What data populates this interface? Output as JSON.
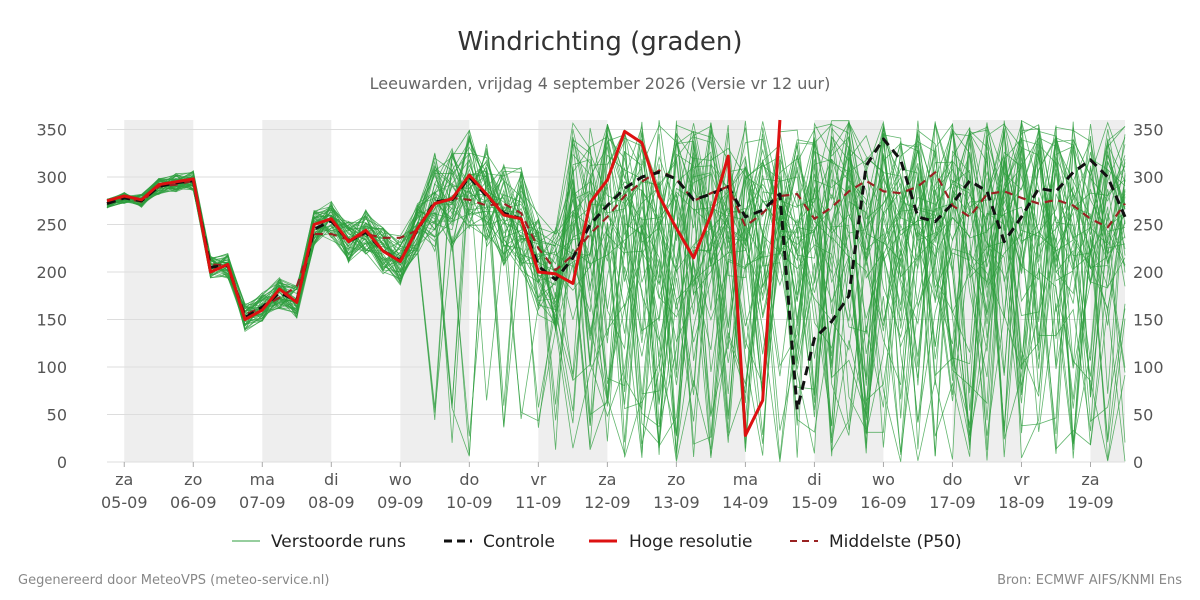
{
  "chart_data": {
    "type": "line",
    "title": "Windrichting (graden)",
    "subtitle": "Leeuwarden, vrijdag  4 september 2026 (Versie vr 12 uur)",
    "ylim": [
      0,
      360
    ],
    "yticks": [
      0,
      50,
      100,
      150,
      200,
      250,
      300,
      350
    ],
    "xlim": [
      -0.25,
      14.5
    ],
    "x_ticks": [
      {
        "day": "za",
        "date": "05-09"
      },
      {
        "day": "zo",
        "date": "06-09"
      },
      {
        "day": "ma",
        "date": "07-09"
      },
      {
        "day": "di",
        "date": "08-09"
      },
      {
        "day": "wo",
        "date": "09-09"
      },
      {
        "day": "do",
        "date": "10-09"
      },
      {
        "day": "vr",
        "date": "11-09"
      },
      {
        "day": "za",
        "date": "12-09"
      },
      {
        "day": "zo",
        "date": "13-09"
      },
      {
        "day": "ma",
        "date": "14-09"
      },
      {
        "day": "di",
        "date": "15-09"
      },
      {
        "day": "wo",
        "date": "16-09"
      },
      {
        "day": "do",
        "date": "17-09"
      },
      {
        "day": "vr",
        "date": "18-09"
      },
      {
        "day": "za",
        "date": "19-09"
      }
    ],
    "shaded_bands": [
      [
        0,
        1
      ],
      [
        2,
        3
      ],
      [
        4,
        5
      ],
      [
        6,
        7
      ],
      [
        8,
        9
      ],
      [
        10,
        11
      ],
      [
        12,
        13
      ],
      [
        14,
        14.5
      ]
    ],
    "grid": "horizontal",
    "legend_position": "bottom",
    "series": [
      {
        "name": "Controle",
        "style": "dashed",
        "color": "#111111",
        "points": [
          [
            -0.25,
            272
          ],
          [
            0,
            278
          ],
          [
            0.25,
            275
          ],
          [
            0.5,
            290
          ],
          [
            0.75,
            294
          ],
          [
            1,
            296
          ],
          [
            1.25,
            205
          ],
          [
            1.5,
            207
          ],
          [
            1.75,
            152
          ],
          [
            2,
            163
          ],
          [
            2.25,
            178
          ],
          [
            2.5,
            170
          ],
          [
            2.75,
            245
          ],
          [
            3,
            254
          ],
          [
            3.25,
            232
          ],
          [
            3.5,
            242
          ],
          [
            3.75,
            222
          ],
          [
            4,
            212
          ],
          [
            4.25,
            245
          ],
          [
            4.5,
            274
          ],
          [
            4.75,
            276
          ],
          [
            5,
            300
          ],
          [
            5.25,
            280
          ],
          [
            5.5,
            262
          ],
          [
            5.75,
            256
          ],
          [
            6,
            206
          ],
          [
            6.25,
            192
          ],
          [
            6.5,
            215
          ],
          [
            6.75,
            250
          ],
          [
            7,
            270
          ],
          [
            7.25,
            288
          ],
          [
            7.5,
            300
          ],
          [
            7.75,
            305
          ],
          [
            8,
            298
          ],
          [
            8.25,
            276
          ],
          [
            8.5,
            282
          ],
          [
            8.75,
            290
          ],
          [
            9,
            258
          ],
          [
            9.25,
            265
          ],
          [
            9.5,
            282
          ],
          [
            9.75,
            55
          ],
          [
            10,
            130
          ],
          [
            10.25,
            148
          ],
          [
            10.5,
            175
          ],
          [
            10.75,
            312
          ],
          [
            11,
            340
          ],
          [
            11.25,
            318
          ],
          [
            11.5,
            258
          ],
          [
            11.75,
            253
          ],
          [
            12,
            272
          ],
          [
            12.25,
            296
          ],
          [
            12.5,
            285
          ],
          [
            12.75,
            232
          ],
          [
            13,
            258
          ],
          [
            13.25,
            288
          ],
          [
            13.5,
            285
          ],
          [
            13.75,
            305
          ],
          [
            14,
            318
          ],
          [
            14.25,
            300
          ],
          [
            14.5,
            258
          ]
        ]
      },
      {
        "name": "Hoge resolutie",
        "style": "solid",
        "color": "#dd1111",
        "points": [
          [
            -0.25,
            275
          ],
          [
            0,
            280
          ],
          [
            0.25,
            276
          ],
          [
            0.5,
            292
          ],
          [
            0.75,
            295
          ],
          [
            1,
            298
          ],
          [
            1.25,
            200
          ],
          [
            1.5,
            208
          ],
          [
            1.75,
            150
          ],
          [
            2,
            160
          ],
          [
            2.25,
            182
          ],
          [
            2.5,
            168
          ],
          [
            2.75,
            250
          ],
          [
            3,
            256
          ],
          [
            3.25,
            232
          ],
          [
            3.5,
            244
          ],
          [
            3.75,
            222
          ],
          [
            4,
            211
          ],
          [
            4.25,
            246
          ],
          [
            4.5,
            272
          ],
          [
            4.75,
            277
          ],
          [
            5,
            302
          ],
          [
            5.25,
            282
          ],
          [
            5.5,
            260
          ],
          [
            5.75,
            256
          ],
          [
            6,
            200
          ],
          [
            6.25,
            198
          ],
          [
            6.5,
            188
          ],
          [
            6.75,
            273
          ],
          [
            7,
            297
          ],
          [
            7.25,
            348
          ],
          [
            7.5,
            336
          ],
          [
            7.75,
            280
          ],
          [
            8,
            246
          ],
          [
            8.25,
            215
          ],
          [
            8.5,
            260
          ],
          [
            8.75,
            322
          ],
          [
            9,
            28
          ],
          [
            9.25,
            65
          ],
          [
            9.5,
            360
          ]
        ]
      },
      {
        "name": "Middelste (P50)",
        "style": "dashed",
        "color": "#992222",
        "points": [
          [
            -0.25,
            272
          ],
          [
            0,
            278
          ],
          [
            0.25,
            274
          ],
          [
            0.5,
            290
          ],
          [
            0.75,
            292
          ],
          [
            1,
            296
          ],
          [
            1.25,
            208
          ],
          [
            1.5,
            207
          ],
          [
            1.75,
            155
          ],
          [
            2,
            163
          ],
          [
            2.25,
            173
          ],
          [
            2.5,
            185
          ],
          [
            2.75,
            240
          ],
          [
            3,
            240
          ],
          [
            3.25,
            234
          ],
          [
            3.5,
            240
          ],
          [
            3.75,
            236
          ],
          [
            4,
            236
          ],
          [
            4.25,
            244
          ],
          [
            4.5,
            272
          ],
          [
            4.75,
            278
          ],
          [
            5,
            276
          ],
          [
            5.25,
            270
          ],
          [
            5.5,
            272
          ],
          [
            5.75,
            262
          ],
          [
            6,
            225
          ],
          [
            6.25,
            202
          ],
          [
            6.5,
            218
          ],
          [
            6.75,
            240
          ],
          [
            7,
            258
          ],
          [
            7.25,
            280
          ],
          [
            7.5,
            295
          ],
          [
            7.75,
            307
          ],
          [
            8,
            298
          ],
          [
            8.25,
            275
          ],
          [
            8.5,
            283
          ],
          [
            8.75,
            290
          ],
          [
            9,
            248
          ],
          [
            9.25,
            262
          ],
          [
            9.5,
            280
          ],
          [
            9.75,
            282
          ],
          [
            10,
            256
          ],
          [
            10.25,
            268
          ],
          [
            10.5,
            285
          ],
          [
            10.75,
            296
          ],
          [
            11,
            285
          ],
          [
            11.25,
            283
          ],
          [
            11.5,
            290
          ],
          [
            11.75,
            305
          ],
          [
            12,
            270
          ],
          [
            12.25,
            258
          ],
          [
            12.5,
            282
          ],
          [
            12.75,
            285
          ],
          [
            13,
            278
          ],
          [
            13.25,
            272
          ],
          [
            13.5,
            276
          ],
          [
            13.75,
            270
          ],
          [
            14,
            256
          ],
          [
            14.25,
            247
          ],
          [
            14.5,
            272
          ]
        ]
      }
    ]
  },
  "legend": {
    "perturbed": "Verstoorde runs",
    "control": "Controle",
    "hires": "Hoge resolutie",
    "median": "Middelste (P50)"
  },
  "footer": {
    "left": "Gegenereerd door MeteoVPS (meteo-service.nl)",
    "right": "Bron: ECMWF AIFS/KNMI Ens"
  },
  "colors": {
    "ensemble": "#2e9e3e",
    "grid": "#dddddd",
    "band": "#eeeeee"
  }
}
